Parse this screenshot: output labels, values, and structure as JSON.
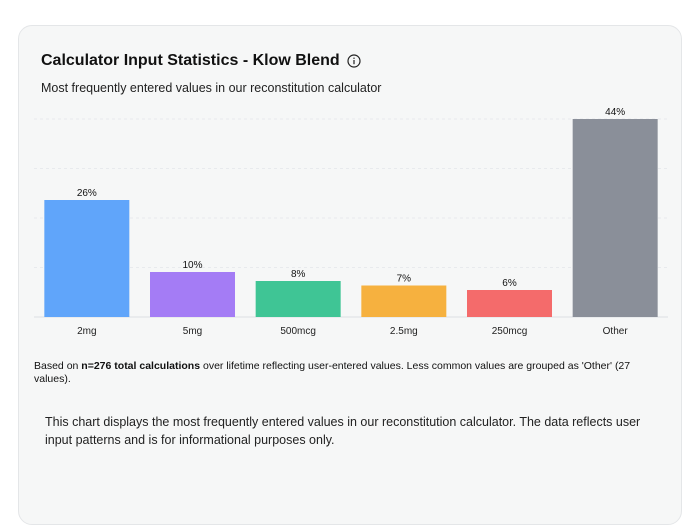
{
  "card": {
    "title": "Calculator Input Statistics - Klow Blend",
    "subtitle": "Most frequently entered values in our reconstitution calculator",
    "footnote_prefix": "Based on ",
    "footnote_bold": "n=276 total calculations",
    "footnote_suffix": " over lifetime reflecting user-entered values. Less common values are grouped as 'Other' (27 values).",
    "disclaimer": "This chart displays the most frequently entered values in our reconstitution calculator. The data reflects user input patterns and is for informational purposes only."
  },
  "icons": {
    "info": "info-circle-icon"
  },
  "chart_data": {
    "type": "bar",
    "title": "Calculator Input Statistics - Klow Blend",
    "categories": [
      "2mg",
      "5mg",
      "500mcg",
      "2.5mg",
      "250mcg",
      "Other"
    ],
    "values": [
      26,
      10,
      8,
      7,
      6,
      44
    ],
    "value_labels": [
      "26%",
      "10%",
      "8%",
      "7%",
      "6%",
      "44%"
    ],
    "colors": [
      "#60a5fa",
      "#a47cf5",
      "#3fc595",
      "#f6b13f",
      "#f46b6b",
      "#8a8f99"
    ],
    "ylim": [
      0,
      44
    ],
    "unit": "%",
    "grid": true,
    "xlabel": "",
    "ylabel": ""
  }
}
